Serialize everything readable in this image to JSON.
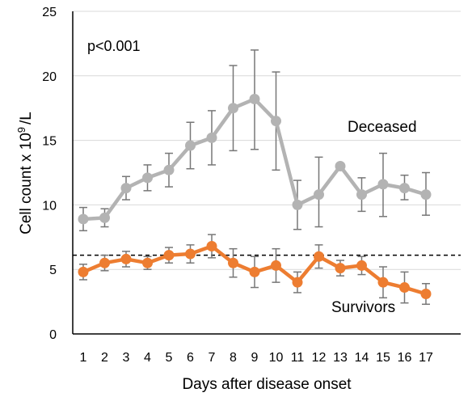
{
  "chart_data": {
    "type": "line",
    "title": "",
    "xlabel": "Days after disease onset",
    "ylabel_main": "Cell count x 10",
    "ylabel_sup": "9",
    "ylabel_tail": "/L",
    "ylim": [
      0,
      25
    ],
    "yticks": [
      0,
      5,
      10,
      15,
      20,
      25
    ],
    "x": [
      1,
      2,
      3,
      4,
      5,
      6,
      7,
      8,
      9,
      10,
      11,
      12,
      13,
      14,
      15,
      16,
      17
    ],
    "grid": true,
    "annotation": "p<0.001",
    "reference_line": {
      "value": 6.1,
      "style": "dashed",
      "color": "#000000"
    },
    "series": [
      {
        "name": "Deceased",
        "color": "#b3b3b3",
        "errorbar_color": "#777777",
        "values": [
          8.9,
          9.0,
          11.3,
          12.1,
          12.7,
          14.6,
          15.2,
          17.5,
          18.2,
          16.5,
          10.0,
          10.8,
          13.0,
          10.8,
          11.6,
          11.3,
          10.8
        ],
        "err_low": [
          0.9,
          0.7,
          0.9,
          1.0,
          1.3,
          1.8,
          2.1,
          3.3,
          3.9,
          3.8,
          1.9,
          2.5,
          null,
          1.3,
          2.5,
          0.9,
          1.6
        ],
        "err_high": [
          0.9,
          0.7,
          0.9,
          1.0,
          1.3,
          1.8,
          2.1,
          3.3,
          3.8,
          3.8,
          1.9,
          2.9,
          null,
          1.3,
          2.4,
          1.0,
          1.7
        ]
      },
      {
        "name": "Survivors",
        "color": "#ed7d31",
        "errorbar_color": "#777777",
        "values": [
          4.8,
          5.5,
          5.8,
          5.5,
          6.1,
          6.2,
          6.8,
          5.5,
          4.8,
          5.3,
          4.0,
          6.0,
          5.1,
          5.3,
          4.0,
          3.6,
          3.1
        ],
        "err_low": [
          0.6,
          0.6,
          0.6,
          0.5,
          0.6,
          0.7,
          0.9,
          1.1,
          1.2,
          1.3,
          0.8,
          0.9,
          0.6,
          0.7,
          1.2,
          1.2,
          0.8
        ],
        "err_high": [
          0.6,
          0.6,
          0.6,
          0.5,
          0.6,
          0.7,
          0.9,
          1.1,
          1.2,
          1.3,
          0.8,
          0.9,
          0.6,
          0.7,
          1.2,
          1.2,
          0.8
        ]
      }
    ]
  }
}
